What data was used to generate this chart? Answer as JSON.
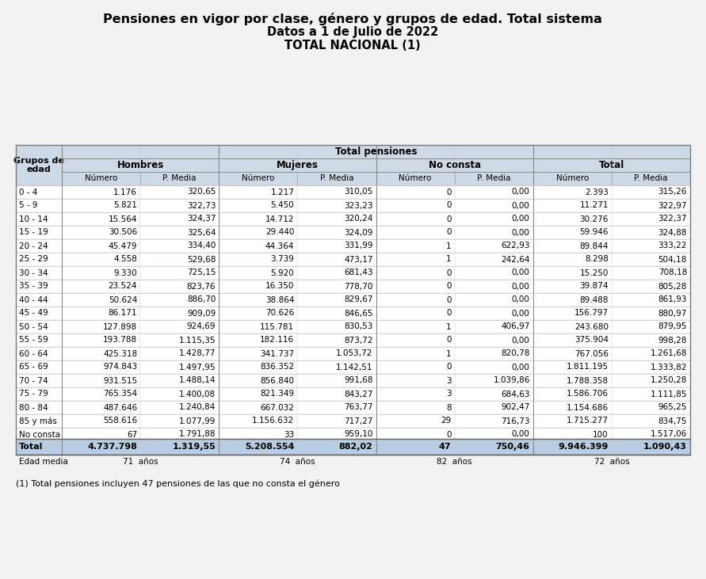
{
  "title1": "Pensiones en vigor por clase, género y grupos de edad. Total sistema",
  "title2": "Datos a 1 de Julio de 2022",
  "title3": "TOTAL NACIONAL ¹",
  "title3_display": "TOTAL NACIONAL (1)",
  "footnote": "(1) Total pensiones incluyen 47 pensiones de las que no consta el género",
  "header_top": "Total pensiones",
  "header_groups": [
    "Hombres",
    "Mujeres",
    "No consta",
    "Total"
  ],
  "header_sub": [
    "Número",
    "P. Media",
    "Número",
    "P. Media",
    "Número",
    "P. Media",
    "Número",
    "P. Media"
  ],
  "col_label": "Grupos de\nedad",
  "rows": [
    [
      "0 - 4",
      "1.176",
      "320,65",
      "1.217",
      "310,05",
      "0",
      "0,00",
      "2.393",
      "315,26"
    ],
    [
      "5 - 9",
      "5.821",
      "322,73",
      "5.450",
      "323,23",
      "0",
      "0,00",
      "11.271",
      "322,97"
    ],
    [
      "10 - 14",
      "15.564",
      "324,37",
      "14.712",
      "320,24",
      "0",
      "0,00",
      "30.276",
      "322,37"
    ],
    [
      "15 - 19",
      "30.506",
      "325,64",
      "29.440",
      "324,09",
      "0",
      "0,00",
      "59.946",
      "324,88"
    ],
    [
      "20 - 24",
      "45.479",
      "334,40",
      "44.364",
      "331,99",
      "1",
      "622,93",
      "89.844",
      "333,22"
    ],
    [
      "25 - 29",
      "4.558",
      "529,68",
      "3.739",
      "473,17",
      "1",
      "242,64",
      "8.298",
      "504,18"
    ],
    [
      "30 - 34",
      "9.330",
      "725,15",
      "5.920",
      "681,43",
      "0",
      "0,00",
      "15.250",
      "708,18"
    ],
    [
      "35 - 39",
      "23.524",
      "823,76",
      "16.350",
      "778,70",
      "0",
      "0,00",
      "39.874",
      "805,28"
    ],
    [
      "40 - 44",
      "50.624",
      "886,70",
      "38.864",
      "829,67",
      "0",
      "0,00",
      "89.488",
      "861,93"
    ],
    [
      "45 - 49",
      "86.171",
      "909,09",
      "70.626",
      "846,65",
      "0",
      "0,00",
      "156.797",
      "880,97"
    ],
    [
      "50 - 54",
      "127.898",
      "924,69",
      "115.781",
      "830,53",
      "1",
      "406,97",
      "243.680",
      "879,95"
    ],
    [
      "55 - 59",
      "193.788",
      "1.115,35",
      "182.116",
      "873,72",
      "0",
      "0,00",
      "375.904",
      "998,28"
    ],
    [
      "60 - 64",
      "425.318",
      "1.428,77",
      "341.737",
      "1.053,72",
      "1",
      "820,78",
      "767.056",
      "1.261,68"
    ],
    [
      "65 - 69",
      "974.843",
      "1.497,95",
      "836.352",
      "1.142,51",
      "0",
      "0,00",
      "1.811.195",
      "1.333,82"
    ],
    [
      "70 - 74",
      "931.515",
      "1.488,14",
      "856.840",
      "991,68",
      "3",
      "1.039,86",
      "1.788.358",
      "1.250,28"
    ],
    [
      "75 - 79",
      "765.354",
      "1.400,08",
      "821.349",
      "843,27",
      "3",
      "684,63",
      "1.586.706",
      "1.111,85"
    ],
    [
      "80 - 84",
      "487.646",
      "1.240,84",
      "667.032",
      "763,77",
      "8",
      "902,47",
      "1.154.686",
      "965,25"
    ],
    [
      "85 y más",
      "558.616",
      "1.077,99",
      "1.156.632",
      "717,27",
      "29",
      "716,73",
      "1.715.277",
      "834,75"
    ],
    [
      "No consta",
      "67",
      "1.791,88",
      "33",
      "959,10",
      "0",
      "0,00",
      "100",
      "1.517,06"
    ]
  ],
  "total_row": [
    "Total",
    "4.737.798",
    "1.319,55",
    "5.208.554",
    "882,02",
    "47",
    "750,46",
    "9.946.399",
    "1.090,43"
  ],
  "edad_media": [
    "Edad media",
    "71  años",
    "74  años",
    "82  años",
    "72  años"
  ],
  "header_bg": "#cdd9e5",
  "total_bg": "#b8cce4",
  "bg_color": "#f2f2f2",
  "white_bg": "#ffffff",
  "border_color": "#999999",
  "title_color": "#000000"
}
